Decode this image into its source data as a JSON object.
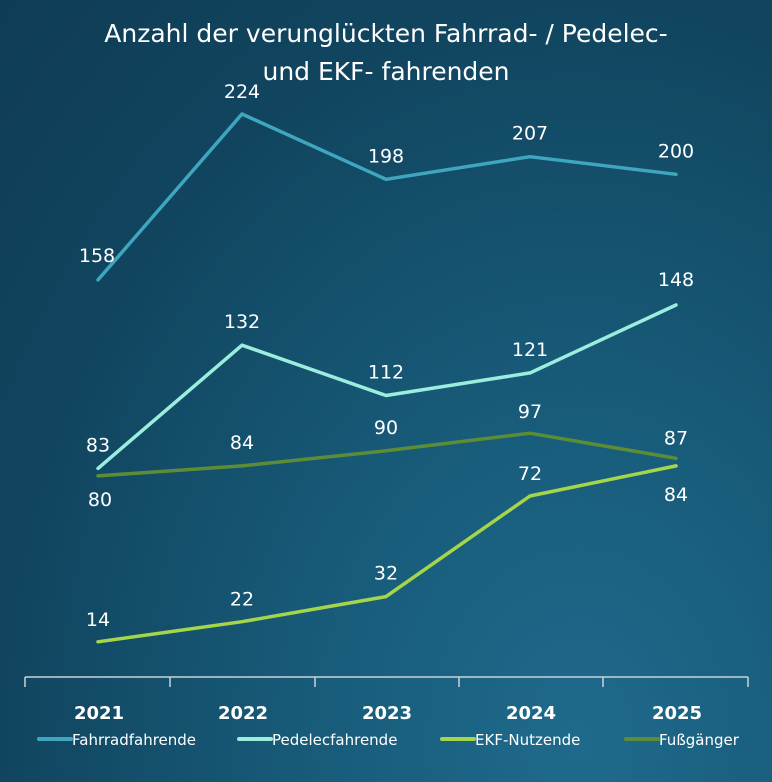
{
  "chart_data": {
    "type": "line",
    "title_lines": [
      "Anzahl der verunglückten Fahrrad- / Pedelec-",
      "und EKF- fahrenden"
    ],
    "categories": [
      "2021",
      "2022",
      "2023",
      "2024",
      "2025"
    ],
    "series": [
      {
        "name": "Fahrradfahrende",
        "color": "#3ea7bf",
        "values": [
          158,
          224,
          198,
          207,
          200
        ]
      },
      {
        "name": "Pedelecfahrende",
        "color": "#9beedd",
        "values": [
          83,
          132,
          112,
          121,
          148
        ]
      },
      {
        "name": "EKF-Nutzende",
        "color": "#a5d64a",
        "values": [
          14,
          22,
          32,
          72,
          84
        ]
      },
      {
        "name": "Fußgänger",
        "color": "#5c8d36",
        "values": [
          80,
          84,
          90,
          97,
          87
        ]
      }
    ],
    "xlabel": "",
    "ylabel": "",
    "ylim": [
      0,
      224
    ],
    "grid": false,
    "legend": "bottom",
    "axis_color": "#c8d3da"
  }
}
